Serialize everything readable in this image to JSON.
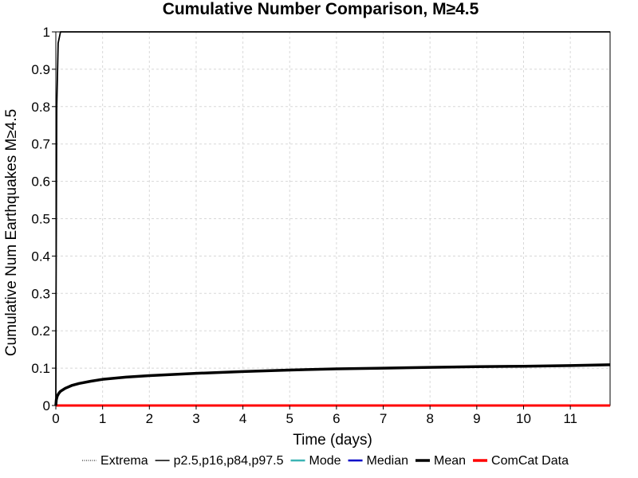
{
  "chart_data": {
    "type": "line",
    "title": "Cumulative Number Comparison, M≥4.5",
    "xlabel": "Time (days)",
    "ylabel": "Cumulative Num Earthquakes M≥4.5",
    "xlim": [
      0,
      11.85
    ],
    "ylim": [
      0,
      1
    ],
    "x_ticks": [
      "0",
      "1",
      "2",
      "3",
      "4",
      "5",
      "6",
      "7",
      "8",
      "9",
      "10",
      "11"
    ],
    "y_ticks": [
      "0",
      "0.1",
      "0.2",
      "0.3",
      "0.4",
      "0.5",
      "0.6",
      "0.7",
      "0.8",
      "0.9",
      "1"
    ],
    "grid": true,
    "legend_position": "bottom",
    "legend": [
      {
        "label": "Extrema",
        "color": "#000000",
        "style": "dotted"
      },
      {
        "label": "p2.5,p16,p84,p97.5",
        "color": "#000000",
        "style": "solid-thin"
      },
      {
        "label": "Mode",
        "color": "#3cb4b4",
        "style": "solid"
      },
      {
        "label": "Median",
        "color": "#0000c8",
        "style": "solid"
      },
      {
        "label": "Mean",
        "color": "#000000",
        "style": "solid-thick"
      },
      {
        "label": "ComCat Data",
        "color": "#ff0000",
        "style": "solid-thick"
      }
    ],
    "series": [
      {
        "name": "Mean",
        "color": "#000000",
        "x": [
          0,
          0.01,
          0.03,
          0.06,
          0.1,
          0.2,
          0.35,
          0.5,
          0.75,
          1,
          1.5,
          2,
          3,
          4,
          5,
          6,
          7,
          8,
          9,
          10,
          11,
          11.85
        ],
        "y": [
          0,
          0.015,
          0.025,
          0.032,
          0.038,
          0.046,
          0.054,
          0.059,
          0.065,
          0.07,
          0.076,
          0.08,
          0.086,
          0.091,
          0.095,
          0.098,
          0.1,
          0.102,
          0.104,
          0.105,
          0.107,
          0.109
        ]
      },
      {
        "name": "Extrema",
        "color": "#000000",
        "x": [
          0,
          0.005,
          0.02,
          0.05,
          0.1,
          11.85
        ],
        "y": [
          0,
          0.3,
          0.8,
          0.97,
          1,
          1
        ]
      },
      {
        "name": "ComCat Data",
        "color": "#ff0000",
        "x": [
          0,
          11.85
        ],
        "y": [
          0,
          0
        ]
      }
    ]
  }
}
